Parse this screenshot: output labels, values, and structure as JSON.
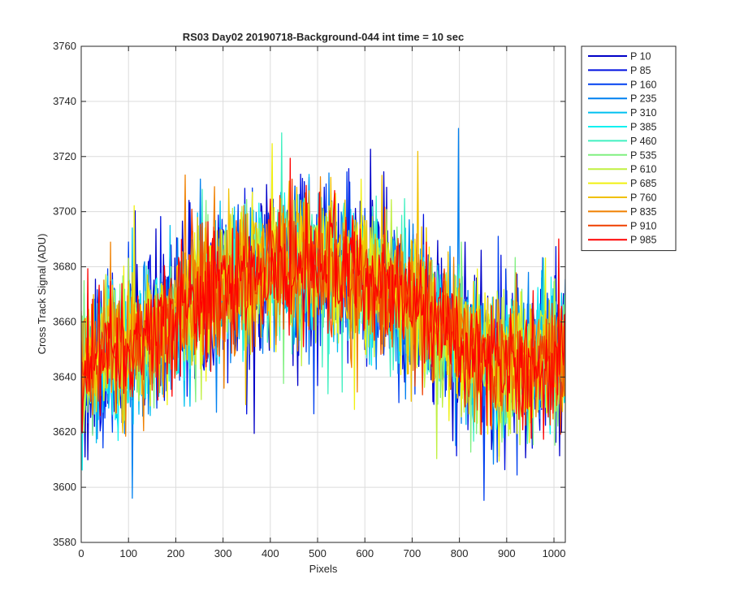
{
  "chart_data": {
    "type": "line",
    "title": "RS03 Day02 20190718-Background-044 int time = 10 sec",
    "xlabel": "Pixels",
    "ylabel": "Cross Track Signal (ADU)",
    "xlim": [
      0,
      1024
    ],
    "ylim": [
      3580,
      3760
    ],
    "xticks": [
      0,
      100,
      200,
      300,
      400,
      500,
      600,
      700,
      800,
      900,
      1000
    ],
    "yticks": [
      3580,
      3600,
      3620,
      3640,
      3660,
      3680,
      3700,
      3720,
      3740,
      3760
    ],
    "grid": true,
    "legend_position": "outside-top-right",
    "profile_x": [
      0,
      50,
      100,
      150,
      200,
      250,
      300,
      350,
      400,
      450,
      500,
      550,
      600,
      650,
      700,
      750,
      800,
      850,
      900,
      950,
      1000,
      1024
    ],
    "series": [
      {
        "name": "P 10",
        "color": "#0000c8",
        "noise": 14,
        "profile_y": [
          3640,
          3645,
          3648,
          3652,
          3660,
          3668,
          3672,
          3676,
          3679,
          3680,
          3680,
          3678,
          3676,
          3672,
          3668,
          3660,
          3652,
          3647,
          3645,
          3645,
          3646,
          3646
        ]
      },
      {
        "name": "P 85",
        "color": "#0010e0",
        "noise": 14,
        "profile_y": [
          3641,
          3645,
          3648,
          3652,
          3660,
          3668,
          3672,
          3676,
          3679,
          3680,
          3680,
          3678,
          3676,
          3672,
          3668,
          3660,
          3652,
          3647,
          3645,
          3645,
          3646,
          3646
        ]
      },
      {
        "name": "P 160",
        "color": "#0040f0",
        "noise": 13,
        "profile_y": [
          3641,
          3646,
          3649,
          3653,
          3661,
          3668,
          3672,
          3676,
          3679,
          3680,
          3680,
          3678,
          3676,
          3672,
          3668,
          3660,
          3652,
          3647,
          3645,
          3645,
          3646,
          3646
        ]
      },
      {
        "name": "P 235",
        "color": "#0080f0",
        "noise": 13,
        "profile_y": [
          3642,
          3646,
          3649,
          3653,
          3661,
          3668,
          3672,
          3676,
          3679,
          3680,
          3680,
          3678,
          3676,
          3672,
          3668,
          3660,
          3652,
          3647,
          3645,
          3645,
          3646,
          3646
        ]
      },
      {
        "name": "P 310",
        "color": "#00c0f0",
        "noise": 13,
        "profile_y": [
          3642,
          3646,
          3649,
          3653,
          3661,
          3668,
          3672,
          3676,
          3679,
          3680,
          3680,
          3678,
          3676,
          3672,
          3668,
          3660,
          3652,
          3647,
          3645,
          3645,
          3646,
          3646
        ]
      },
      {
        "name": "P 385",
        "color": "#10f0f0",
        "noise": 12,
        "profile_y": [
          3642,
          3646,
          3650,
          3654,
          3661,
          3668,
          3672,
          3676,
          3679,
          3680,
          3680,
          3678,
          3676,
          3672,
          3668,
          3660,
          3652,
          3647,
          3645,
          3645,
          3646,
          3646
        ]
      },
      {
        "name": "P 460",
        "color": "#40f0c0",
        "noise": 12,
        "profile_y": [
          3643,
          3647,
          3650,
          3654,
          3662,
          3669,
          3673,
          3677,
          3679,
          3680,
          3680,
          3678,
          3676,
          3672,
          3668,
          3660,
          3652,
          3647,
          3645,
          3645,
          3646,
          3646
        ]
      },
      {
        "name": "P 535",
        "color": "#80f080",
        "noise": 12,
        "profile_y": [
          3643,
          3647,
          3650,
          3654,
          3662,
          3669,
          3673,
          3677,
          3679,
          3680,
          3680,
          3678,
          3676,
          3672,
          3668,
          3660,
          3652,
          3647,
          3645,
          3645,
          3646,
          3646
        ]
      },
      {
        "name": "P 610",
        "color": "#c0f040",
        "noise": 12,
        "profile_y": [
          3643,
          3647,
          3650,
          3654,
          3662,
          3669,
          3673,
          3677,
          3679,
          3680,
          3680,
          3678,
          3676,
          3672,
          3668,
          3660,
          3652,
          3647,
          3645,
          3645,
          3646,
          3646
        ]
      },
      {
        "name": "P 685",
        "color": "#f0f010",
        "noise": 12,
        "profile_y": [
          3644,
          3647,
          3651,
          3655,
          3662,
          3669,
          3673,
          3677,
          3679,
          3680,
          3680,
          3678,
          3676,
          3672,
          3668,
          3660,
          3652,
          3647,
          3645,
          3645,
          3646,
          3646
        ]
      },
      {
        "name": "P 760",
        "color": "#f0c000",
        "noise": 12,
        "profile_y": [
          3644,
          3648,
          3651,
          3655,
          3662,
          3669,
          3673,
          3677,
          3679,
          3680,
          3680,
          3678,
          3676,
          3672,
          3668,
          3660,
          3652,
          3647,
          3645,
          3645,
          3646,
          3646
        ]
      },
      {
        "name": "P 835",
        "color": "#f08000",
        "noise": 12,
        "profile_y": [
          3644,
          3648,
          3651,
          3655,
          3662,
          3669,
          3673,
          3677,
          3679,
          3680,
          3680,
          3678,
          3676,
          3672,
          3668,
          3660,
          3652,
          3647,
          3645,
          3645,
          3646,
          3646
        ]
      },
      {
        "name": "P 910",
        "color": "#f04000",
        "noise": 11,
        "profile_y": [
          3645,
          3648,
          3651,
          3655,
          3662,
          3669,
          3673,
          3677,
          3679,
          3680,
          3680,
          3678,
          3676,
          3672,
          3668,
          3660,
          3652,
          3647,
          3645,
          3645,
          3646,
          3646
        ]
      },
      {
        "name": "P 985",
        "color": "#ff0000",
        "noise": 11,
        "profile_y": [
          3645,
          3648,
          3651,
          3655,
          3662,
          3669,
          3673,
          3677,
          3679,
          3680,
          3680,
          3678,
          3676,
          3672,
          3668,
          3660,
          3652,
          3647,
          3645,
          3645,
          3646,
          3646
        ]
      }
    ]
  }
}
